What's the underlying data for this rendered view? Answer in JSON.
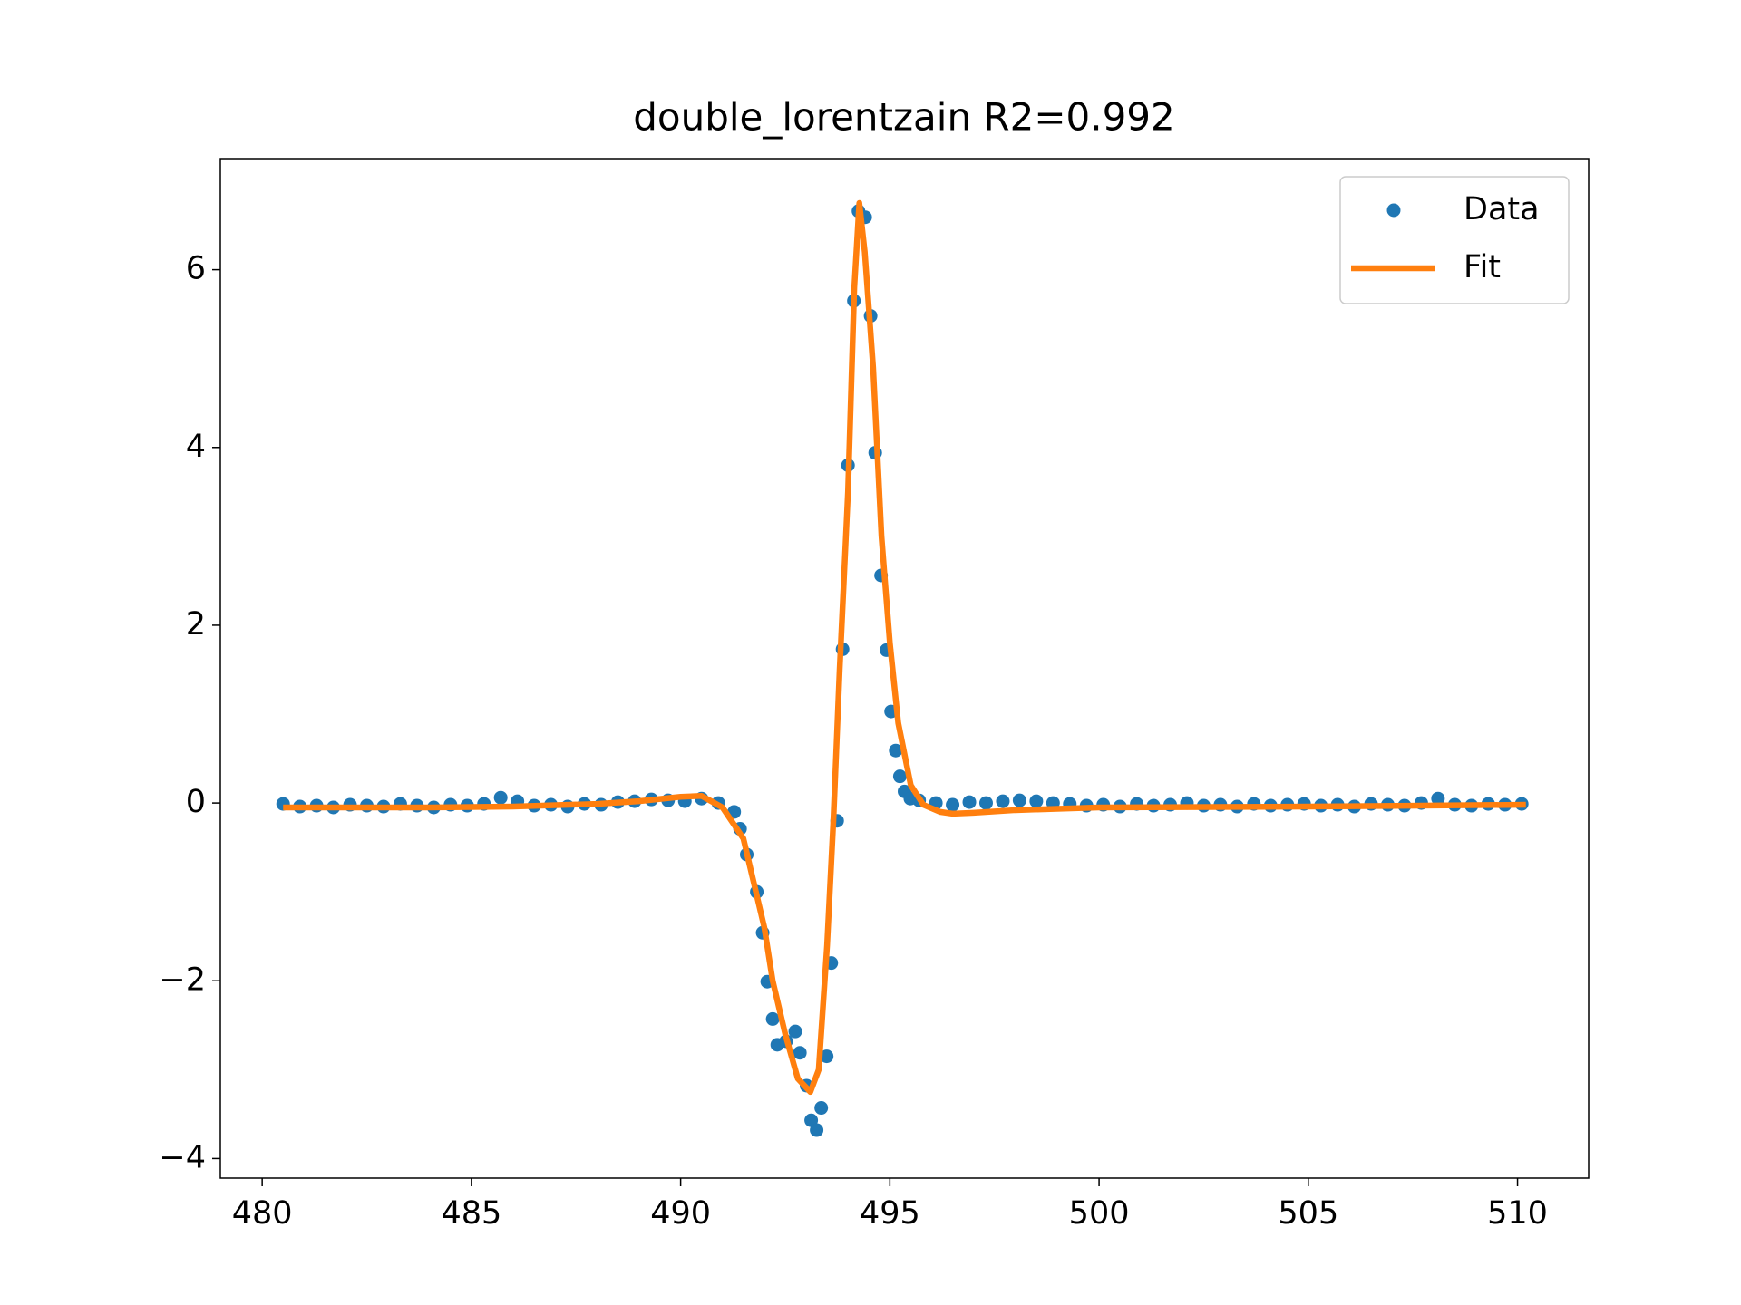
{
  "chart_data": {
    "type": "scatter-line",
    "title": "double_lorentzain R2=0.992",
    "xlim": [
      479.0,
      511.7
    ],
    "ylim": [
      -4.22,
      7.25
    ],
    "xticks": [
      480,
      485,
      490,
      495,
      500,
      505,
      510
    ],
    "yticks": [
      {
        "value": -4,
        "label": "−4"
      },
      {
        "value": -2,
        "label": "−2"
      },
      0,
      2,
      4,
      6
    ],
    "legend": "upper right",
    "series": [
      {
        "name": "Data",
        "color": "#1f77b4",
        "kind": "scatter",
        "x": [
          480.5,
          480.9,
          481.3,
          481.7,
          482.1,
          482.5,
          482.9,
          483.3,
          483.7,
          484.1,
          484.5,
          484.9,
          485.3,
          485.7,
          486.1,
          486.5,
          486.9,
          487.3,
          487.7,
          488.1,
          488.5,
          488.9,
          489.3,
          489.7,
          490.1,
          490.5,
          490.9,
          491.28,
          491.42,
          491.58,
          491.82,
          491.96,
          492.07,
          492.2,
          492.31,
          492.52,
          492.74,
          492.85,
          493.01,
          493.12,
          493.25,
          493.36,
          493.49,
          493.6,
          493.74,
          493.87,
          494.0,
          494.14,
          494.25,
          494.41,
          494.54,
          494.65,
          494.79,
          494.92,
          495.03,
          495.14,
          495.24,
          495.35,
          495.49,
          495.7,
          496.1,
          496.5,
          496.9,
          497.3,
          497.7,
          498.1,
          498.5,
          498.9,
          499.3,
          499.7,
          500.1,
          500.5,
          500.9,
          501.3,
          501.7,
          502.1,
          502.5,
          502.9,
          503.3,
          503.7,
          504.1,
          504.5,
          504.9,
          505.3,
          505.7,
          506.1,
          506.5,
          506.9,
          507.3,
          507.7,
          508.1,
          508.5,
          508.9,
          509.3,
          509.7,
          510.1
        ],
        "values": [
          -0.01,
          -0.04,
          -0.03,
          -0.05,
          -0.02,
          -0.03,
          -0.04,
          -0.01,
          -0.03,
          -0.05,
          -0.02,
          -0.03,
          -0.01,
          0.06,
          0.02,
          -0.03,
          -0.02,
          -0.04,
          -0.01,
          -0.02,
          0.01,
          0.02,
          0.04,
          0.03,
          0.02,
          0.05,
          0.0,
          -0.1,
          -0.29,
          -0.58,
          -1.0,
          -1.46,
          -2.01,
          -2.43,
          -2.72,
          -2.68,
          -2.57,
          -2.81,
          -3.18,
          -3.57,
          -3.68,
          -3.43,
          -2.85,
          -1.8,
          -0.2,
          1.73,
          3.8,
          5.65,
          6.66,
          6.59,
          5.48,
          3.94,
          2.56,
          1.72,
          1.03,
          0.59,
          0.3,
          0.13,
          0.05,
          0.03,
          0.0,
          -0.02,
          0.01,
          0.0,
          0.02,
          0.03,
          0.02,
          0.0,
          -0.01,
          -0.03,
          -0.02,
          -0.04,
          -0.01,
          -0.03,
          -0.02,
          0.0,
          -0.03,
          -0.02,
          -0.04,
          -0.01,
          -0.03,
          -0.02,
          -0.01,
          -0.03,
          -0.02,
          -0.04,
          -0.01,
          -0.02,
          -0.03,
          0.0,
          0.05,
          -0.02,
          -0.03,
          -0.01,
          -0.02,
          -0.01
        ]
      },
      {
        "name": "Fit",
        "color": "#ff7f0e",
        "kind": "line",
        "x": [
          480.5,
          482,
          484,
          486,
          488,
          489,
          490,
          490.5,
          491,
          491.5,
          492,
          492.2,
          492.5,
          492.8,
          493.1,
          493.3,
          493.5,
          493.65,
          493.8,
          494.0,
          494.15,
          494.27,
          494.4,
          494.6,
          494.8,
          495.0,
          495.2,
          495.5,
          495.8,
          496.2,
          496.5,
          497,
          498,
          500,
          505,
          510.2
        ],
        "values": [
          -0.05,
          -0.05,
          -0.05,
          -0.04,
          -0.01,
          0.02,
          0.07,
          0.08,
          -0.05,
          -0.4,
          -1.4,
          -2.0,
          -2.6,
          -3.1,
          -3.25,
          -3.0,
          -1.6,
          -0.2,
          1.5,
          3.5,
          5.8,
          6.75,
          6.2,
          4.9,
          3.0,
          1.8,
          0.9,
          0.2,
          -0.02,
          -0.1,
          -0.12,
          -0.11,
          -0.08,
          -0.05,
          -0.04,
          -0.02
        ]
      }
    ]
  }
}
